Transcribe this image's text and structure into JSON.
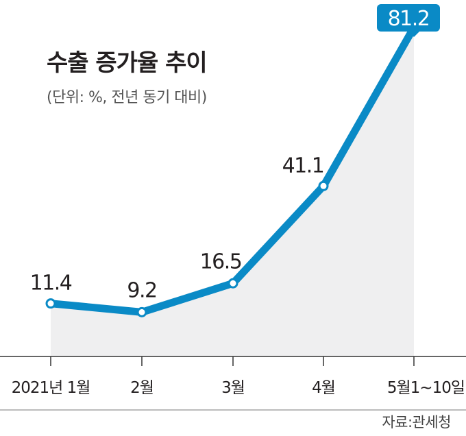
{
  "chart_data": {
    "type": "line",
    "title": "수출 증가율 추이",
    "subtitle": "(단위: %, 전년 동기 대비)",
    "categories": [
      "2021년 1월",
      "2월",
      "3월",
      "4월",
      "5월1~10일"
    ],
    "values": [
      11.4,
      9.2,
      16.5,
      41.1,
      81.2
    ],
    "value_labels": [
      "11.4",
      "9.2",
      "16.5",
      "41.1",
      "81.2"
    ],
    "highlight_index": 4,
    "ylim": [
      -2,
      85
    ],
    "grid": false,
    "area_fill": true,
    "colors": {
      "line": "#0a8ac6",
      "area": "#efeff0",
      "highlight_bg": "#0a8ac6",
      "highlight_text": "#ffffff",
      "axis": "#333333"
    }
  },
  "source": "자료:관세청"
}
